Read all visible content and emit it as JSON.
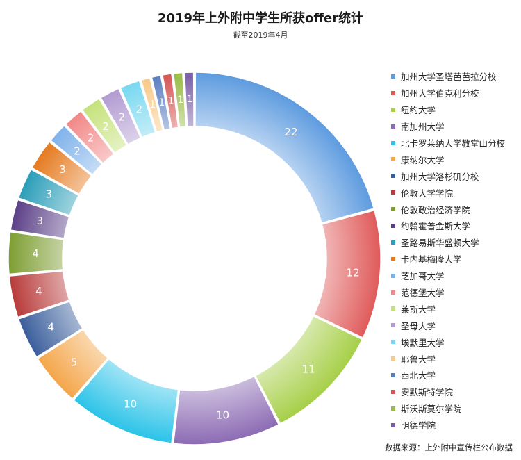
{
  "title": "2019年上外附中学生所获offer统计",
  "subtitle": "截至2019年4月",
  "source": "数据来源：上外附中宣传栏公布数据",
  "chart_data": {
    "type": "pie",
    "donut": true,
    "legend_position": "right",
    "categories": [
      "加州大学圣塔芭芭拉分校",
      "加州大学伯克利分校",
      "纽约大学",
      "南加州大学",
      "北卡罗莱纳大学教堂山分校",
      "康纳尔大学",
      "加州大学洛杉矶分校",
      "伦敦大学学院",
      "伦敦政治经济学院",
      "约翰霍普金斯大学",
      "圣路易斯华盛顿大学",
      "卡内基梅隆大学",
      "芝加哥大学",
      "范德堡大学",
      "莱斯大学",
      "圣母大学",
      "埃默里大学",
      "耶鲁大学",
      "西北大学",
      "安默斯特学院",
      "斯沃斯莫尔学院",
      "明德学院"
    ],
    "values": [
      22,
      12,
      11,
      10,
      10,
      5,
      4,
      4,
      4,
      3,
      3,
      3,
      2,
      2,
      2,
      2,
      2,
      1,
      1,
      1,
      1,
      1
    ],
    "colors": [
      "#5d9bdf",
      "#e05a5a",
      "#a6cf47",
      "#8c6bb4",
      "#2bc3e8",
      "#f4a64a",
      "#3a5e9c",
      "#b83a3a",
      "#7d9e32",
      "#5b3f87",
      "#2a9db8",
      "#e57a1f",
      "#7fb2ea",
      "#f28787",
      "#c5e27a",
      "#b29bd1",
      "#77d8f0",
      "#f8c98a",
      "#5a7fc0",
      "#d45555",
      "#98bb44",
      "#7a5ca8"
    ]
  }
}
